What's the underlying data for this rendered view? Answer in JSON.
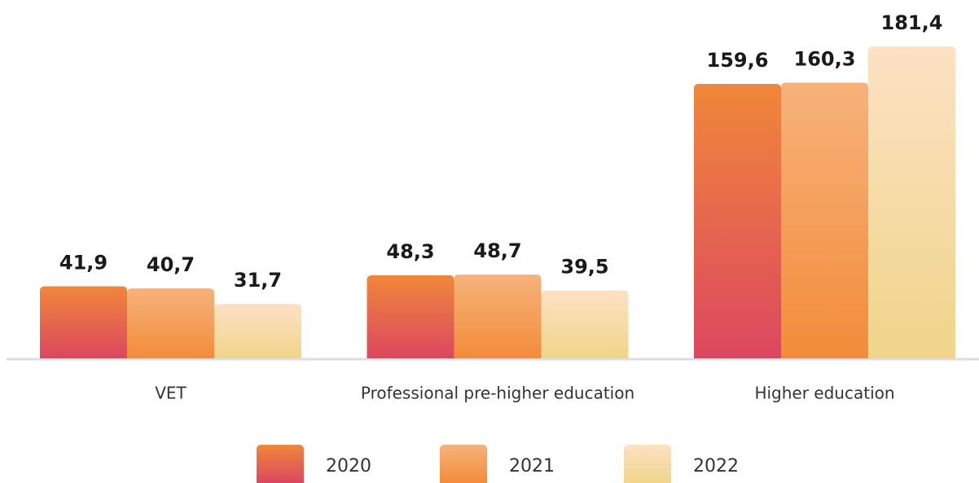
{
  "chart_data": {
    "type": "bar",
    "categories": [
      "VET",
      "Professional pre-higher education",
      "Higher education"
    ],
    "series": [
      {
        "name": "2020",
        "color": [
          "#f0873a",
          "#dc4760"
        ],
        "values": [
          41.9,
          48.3,
          159.6
        ],
        "value_labels": [
          "41,9",
          "48,3",
          "159,6"
        ]
      },
      {
        "name": "2021",
        "color": [
          "#f7b27a",
          "#f28c3a"
        ],
        "values": [
          40.7,
          48.7,
          160.3
        ],
        "value_labels": [
          "40,7",
          "48,7",
          "160,3"
        ]
      },
      {
        "name": "2022",
        "color": [
          "#fde1c4",
          "#f0d58a"
        ],
        "values": [
          31.7,
          39.5,
          181.4
        ],
        "value_labels": [
          "31,7",
          "39,5",
          "181,4"
        ]
      }
    ],
    "legend": "bottom"
  }
}
